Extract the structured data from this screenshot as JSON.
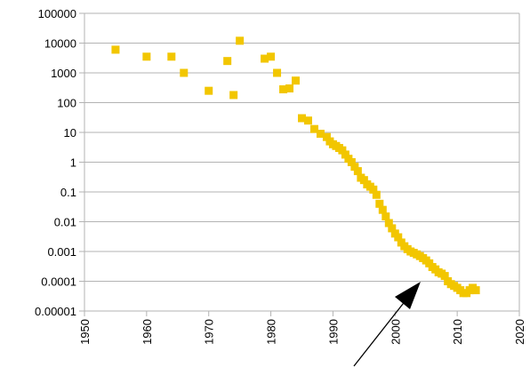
{
  "chart_data": {
    "type": "scatter",
    "title": "",
    "xlabel": "",
    "ylabel": "",
    "y_scale": "log",
    "xlim": [
      1950,
      2020
    ],
    "ylim": [
      1e-05,
      100000
    ],
    "grid": "horizontal",
    "legend": "none",
    "x_ticks": [
      "1950",
      "1960",
      "1970",
      "1980",
      "1990",
      "2000",
      "2010",
      "2020"
    ],
    "y_ticks": [
      "0.00001",
      "0.0001",
      "0.001",
      "0.01",
      "0.1",
      "1",
      "10",
      "100",
      "1000",
      "10000",
      "100000"
    ],
    "colors": {
      "marker": "#f2c600",
      "grid": "#b3b3b3",
      "arrow": "#000000"
    },
    "series": [
      {
        "x": [
          1955,
          1960,
          1964,
          1966,
          1970,
          1973,
          1974,
          1975,
          1979,
          1980,
          1981,
          1982,
          1983,
          1984,
          1985,
          1986,
          1987,
          1988,
          1989,
          1989.5,
          1990,
          1990.5,
          1991,
          1991.5,
          1992,
          1992.5,
          1993,
          1993.5,
          1994,
          1994.5,
          1995,
          1995.5,
          1996,
          1996.5,
          1997,
          1997.5,
          1998,
          1998.5,
          1999,
          1999.5,
          2000,
          2000.5,
          2001,
          2001.5,
          2002,
          2002.5,
          2003,
          2003.5,
          2004,
          2004.5,
          2005,
          2005.5,
          2006,
          2006.5,
          2007,
          2007.5,
          2008,
          2008.5,
          2009,
          2009.5,
          2010,
          2010.5,
          2011,
          2011.5,
          2012,
          2012.5,
          2013
        ],
        "y": [
          6000,
          3500,
          3500,
          1000,
          250,
          2500,
          180,
          12000,
          3000,
          3500,
          1000,
          280,
          300,
          550,
          30,
          25,
          13,
          9,
          7,
          5,
          4,
          3.5,
          3,
          2.5,
          1.8,
          1.3,
          1,
          0.7,
          0.5,
          0.3,
          0.25,
          0.18,
          0.15,
          0.12,
          0.08,
          0.04,
          0.025,
          0.015,
          0.009,
          0.006,
          0.004,
          0.003,
          0.002,
          0.0015,
          0.0012,
          0.001,
          0.0009,
          0.0008,
          0.0007,
          0.0006,
          0.0005,
          0.0004,
          0.0003,
          0.00025,
          0.0002,
          0.00018,
          0.00015,
          0.0001,
          8e-05,
          7e-05,
          6e-05,
          5e-05,
          4e-05,
          4e-05,
          5e-05,
          6e-05,
          5e-05
        ]
      }
    ]
  }
}
